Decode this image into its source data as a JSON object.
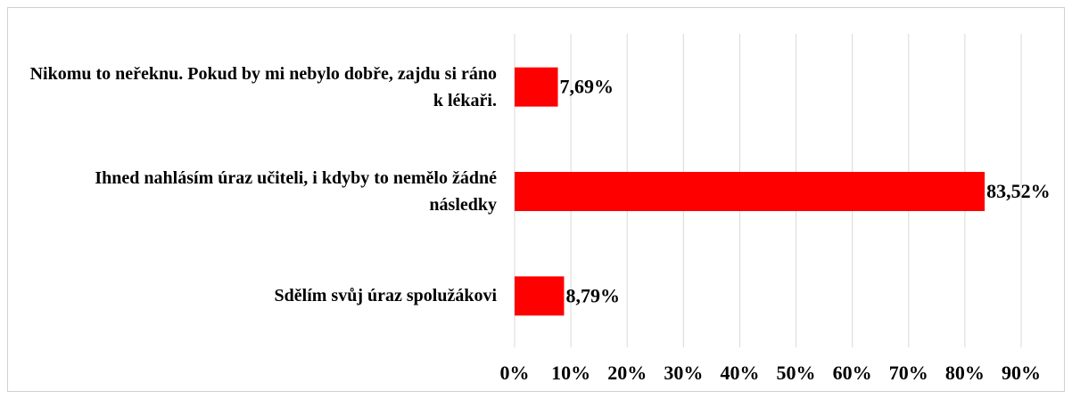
{
  "chart_data": {
    "type": "bar",
    "orientation": "horizontal",
    "categories": [
      "Nikomu to neřeknu. Pokud by mi nebylo dobře, zajdu si ráno k lékaři.",
      "Ihned nahlásím úraz učiteli, i kdyby to nemělo žádné následky",
      "Sdělím svůj úraz spolužákovi"
    ],
    "values": [
      7.69,
      83.52,
      8.79
    ],
    "value_labels": [
      "7,69%",
      "83,52%",
      "8,79%"
    ],
    "color": "#ff0000",
    "xlim": [
      0,
      90
    ],
    "xticks": [
      {
        "value": 0,
        "label": "0%"
      },
      {
        "value": 10,
        "label": "10%"
      },
      {
        "value": 20,
        "label": "20%"
      },
      {
        "value": 30,
        "label": "30%"
      },
      {
        "value": 40,
        "label": "40%"
      },
      {
        "value": 50,
        "label": "50%"
      },
      {
        "value": 60,
        "label": "60%"
      },
      {
        "value": 70,
        "label": "70%"
      },
      {
        "value": 80,
        "label": "80%"
      },
      {
        "value": 90,
        "label": "90%"
      }
    ],
    "grid": true
  }
}
